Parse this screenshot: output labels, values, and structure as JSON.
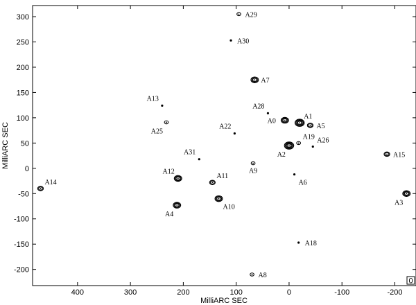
{
  "chart_data": {
    "type": "contour",
    "xlabel": "MilliARC SEC",
    "ylabel": "MilliARC SEC",
    "xlim": [
      485,
      -240
    ],
    "ylim": [
      -232,
      322
    ],
    "x_ticks": [
      400,
      300,
      200,
      100,
      0,
      -100,
      -200
    ],
    "y_ticks": [
      300,
      250,
      200,
      150,
      100,
      50,
      0,
      -50,
      -100,
      -150,
      -200
    ],
    "grid": false,
    "corner_badge": "0",
    "sources": [
      {
        "name": "A0",
        "x": 8,
        "y": 95,
        "level": 3,
        "label_pos": "left"
      },
      {
        "name": "A1",
        "x": -20,
        "y": 90,
        "level": 4,
        "label_pos": "above-right"
      },
      {
        "name": "A2",
        "x": 0,
        "y": 45,
        "level": 4,
        "label_pos": "below-left"
      },
      {
        "name": "A3",
        "x": -222,
        "y": -50,
        "level": 3,
        "label_pos": "below-left"
      },
      {
        "name": "A4",
        "x": 212,
        "y": -73,
        "level": 3,
        "label_pos": "below-left"
      },
      {
        "name": "A5",
        "x": -40,
        "y": 85,
        "level": 2,
        "label_pos": "right"
      },
      {
        "name": "A6",
        "x": -10,
        "y": -12,
        "level": 0,
        "label_pos": "below-right"
      },
      {
        "name": "A7",
        "x": 65,
        "y": 175,
        "level": 3,
        "label_pos": "right"
      },
      {
        "name": "A8",
        "x": 70,
        "y": -210,
        "level": 1,
        "label_pos": "right"
      },
      {
        "name": "A9",
        "x": 68,
        "y": 10,
        "level": 1,
        "label_pos": "below"
      },
      {
        "name": "A10",
        "x": 133,
        "y": -60,
        "level": 3,
        "label_pos": "below-right"
      },
      {
        "name": "A11",
        "x": 145,
        "y": -28,
        "level": 2,
        "label_pos": "above-right"
      },
      {
        "name": "A12",
        "x": 210,
        "y": -20,
        "level": 3,
        "label_pos": "above-left"
      },
      {
        "name": "A13",
        "x": 240,
        "y": 124,
        "level": 0,
        "label_pos": "above-left"
      },
      {
        "name": "A14",
        "x": 470,
        "y": -40,
        "level": 2,
        "label_pos": "above-right"
      },
      {
        "name": "A15",
        "x": -185,
        "y": 28,
        "level": 2,
        "label_pos": "right"
      },
      {
        "name": "A18",
        "x": -18,
        "y": -147,
        "level": 0,
        "label_pos": "right"
      },
      {
        "name": "A19",
        "x": -18,
        "y": 50,
        "level": 1,
        "label_pos": "above-right"
      },
      {
        "name": "A22",
        "x": 103,
        "y": 69,
        "level": 0,
        "label_pos": "above-left"
      },
      {
        "name": "A25",
        "x": 232,
        "y": 91,
        "level": 1,
        "label_pos": "below-left"
      },
      {
        "name": "A26",
        "x": -45,
        "y": 43,
        "level": 0,
        "label_pos": "above-right"
      },
      {
        "name": "A28",
        "x": 40,
        "y": 109,
        "level": 0,
        "label_pos": "above-left"
      },
      {
        "name": "A29",
        "x": 95,
        "y": 305,
        "level": 1,
        "label_pos": "right"
      },
      {
        "name": "A30",
        "x": 110,
        "y": 253,
        "level": 0,
        "label_pos": "right"
      },
      {
        "name": "A31",
        "x": 170,
        "y": 18,
        "level": 0,
        "label_pos": "above-left"
      }
    ]
  }
}
